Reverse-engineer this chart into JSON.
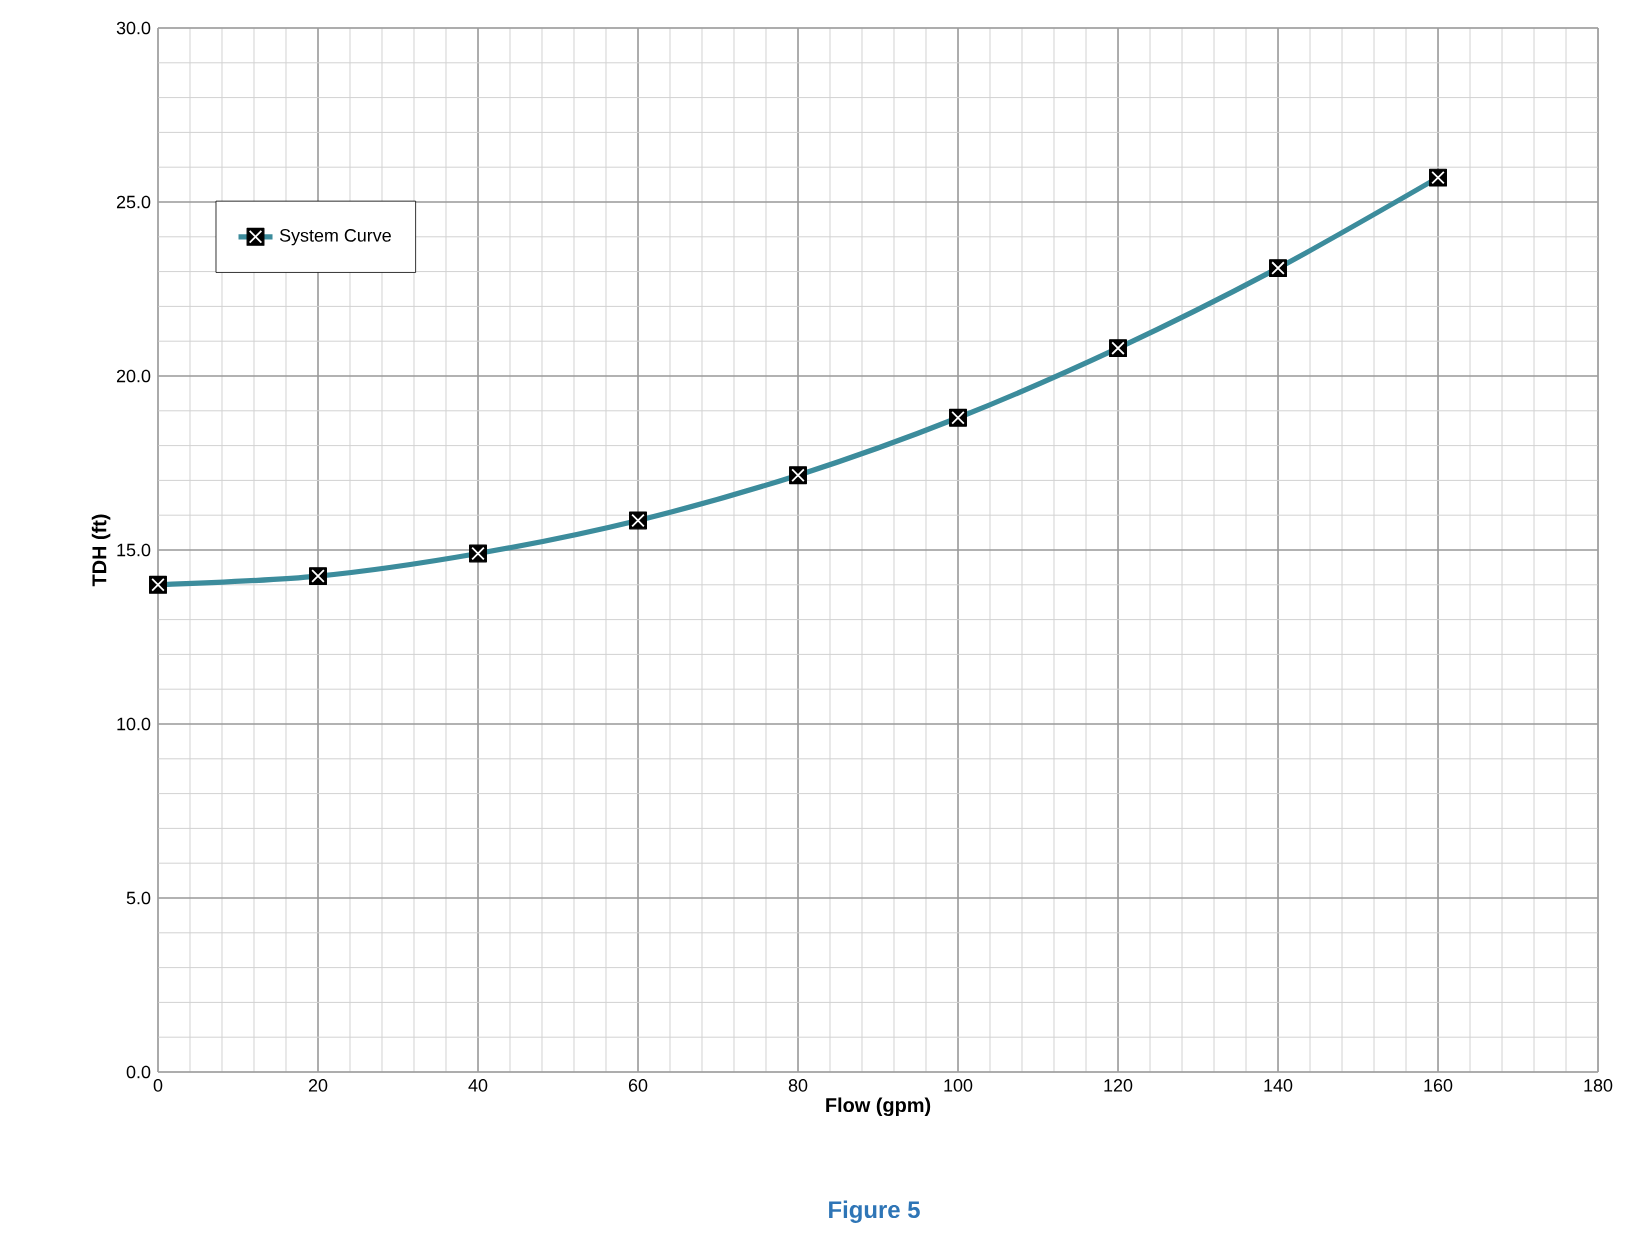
{
  "chart_data": {
    "type": "line",
    "xlabel": "Flow (gpm)",
    "ylabel": "TDH (ft)",
    "x": [
      0,
      20,
      40,
      60,
      80,
      100,
      120,
      140,
      160
    ],
    "series": [
      {
        "name": "System Curve",
        "color": "#3c8c9c",
        "values": [
          14.0,
          14.25,
          14.9,
          15.85,
          17.15,
          18.8,
          20.8,
          23.1,
          25.7
        ]
      }
    ],
    "xlim": [
      0,
      180
    ],
    "ylim": [
      0,
      30
    ],
    "xticks": [
      0,
      20,
      40,
      60,
      80,
      100,
      120,
      140,
      160,
      180
    ],
    "yticks": [
      {
        "value": 0,
        "label": "0.0"
      },
      {
        "value": 5,
        "label": "5.0"
      },
      {
        "value": 10,
        "label": "10.0"
      },
      {
        "value": 15,
        "label": "15.0"
      },
      {
        "value": 20,
        "label": "20.0"
      },
      {
        "value": 25,
        "label": "25.0"
      },
      {
        "value": 30,
        "label": "30.0"
      }
    ],
    "grid": true,
    "legend": "top left",
    "marker": "square",
    "line_style": "solid",
    "annotations": [
      "Figure 5"
    ]
  }
}
